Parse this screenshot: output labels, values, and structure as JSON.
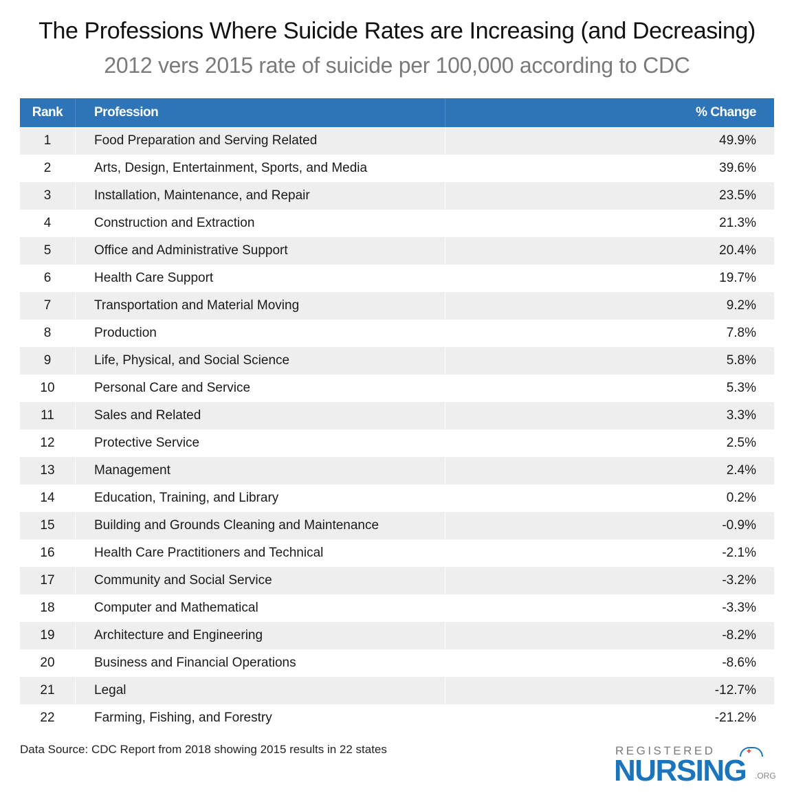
{
  "title": "The Professions Where Suicide Rates are Increasing (and Decreasing)",
  "subtitle": "2012 vers 2015 rate of suicide per 100,000 according to CDC",
  "source": "Data Source: CDC Report from 2018 showing 2015 results in 22 states",
  "logo": {
    "line1": "REGISTERED",
    "line2": "NURSING",
    "suffix": ".ORG"
  },
  "colors": {
    "header": "#2e74b8",
    "row_alt": "#eeeeee",
    "logo_blue": "#1b75bc"
  },
  "chart_data": {
    "type": "table",
    "columns": [
      "Rank",
      "Profession",
      "% Change"
    ],
    "rows": [
      [
        "1",
        "Food Preparation and Serving Related",
        "49.9%"
      ],
      [
        "2",
        "Arts, Design, Entertainment, Sports, and Media",
        "39.6%"
      ],
      [
        "3",
        "Installation, Maintenance, and Repair",
        "23.5%"
      ],
      [
        "4",
        "Construction and Extraction",
        "21.3%"
      ],
      [
        "5",
        "Office and Administrative Support",
        "20.4%"
      ],
      [
        "6",
        "Health Care Support",
        "19.7%"
      ],
      [
        "7",
        "Transportation and Material Moving",
        "9.2%"
      ],
      [
        "8",
        "Production",
        "7.8%"
      ],
      [
        "9",
        "Life, Physical, and Social Science",
        "5.8%"
      ],
      [
        "10",
        "Personal Care and Service",
        "5.3%"
      ],
      [
        "11",
        "Sales and Related",
        "3.3%"
      ],
      [
        "12",
        "Protective Service",
        "2.5%"
      ],
      [
        "13",
        "Management",
        "2.4%"
      ],
      [
        "14",
        "Education, Training, and Library",
        "0.2%"
      ],
      [
        "15",
        "Building and Grounds Cleaning and Maintenance",
        "-0.9%"
      ],
      [
        "16",
        "Health Care Practitioners and Technical",
        "-2.1%"
      ],
      [
        "17",
        "Community and Social Service",
        "-3.2%"
      ],
      [
        "18",
        "Computer and Mathematical",
        "-3.3%"
      ],
      [
        "19",
        "Architecture and Engineering",
        "-8.2%"
      ],
      [
        "20",
        "Business and Financial Operations",
        "-8.6%"
      ],
      [
        "21",
        "Legal",
        "-12.7%"
      ],
      [
        "22",
        "Farming, Fishing, and Forestry",
        "-21.2%"
      ]
    ]
  }
}
